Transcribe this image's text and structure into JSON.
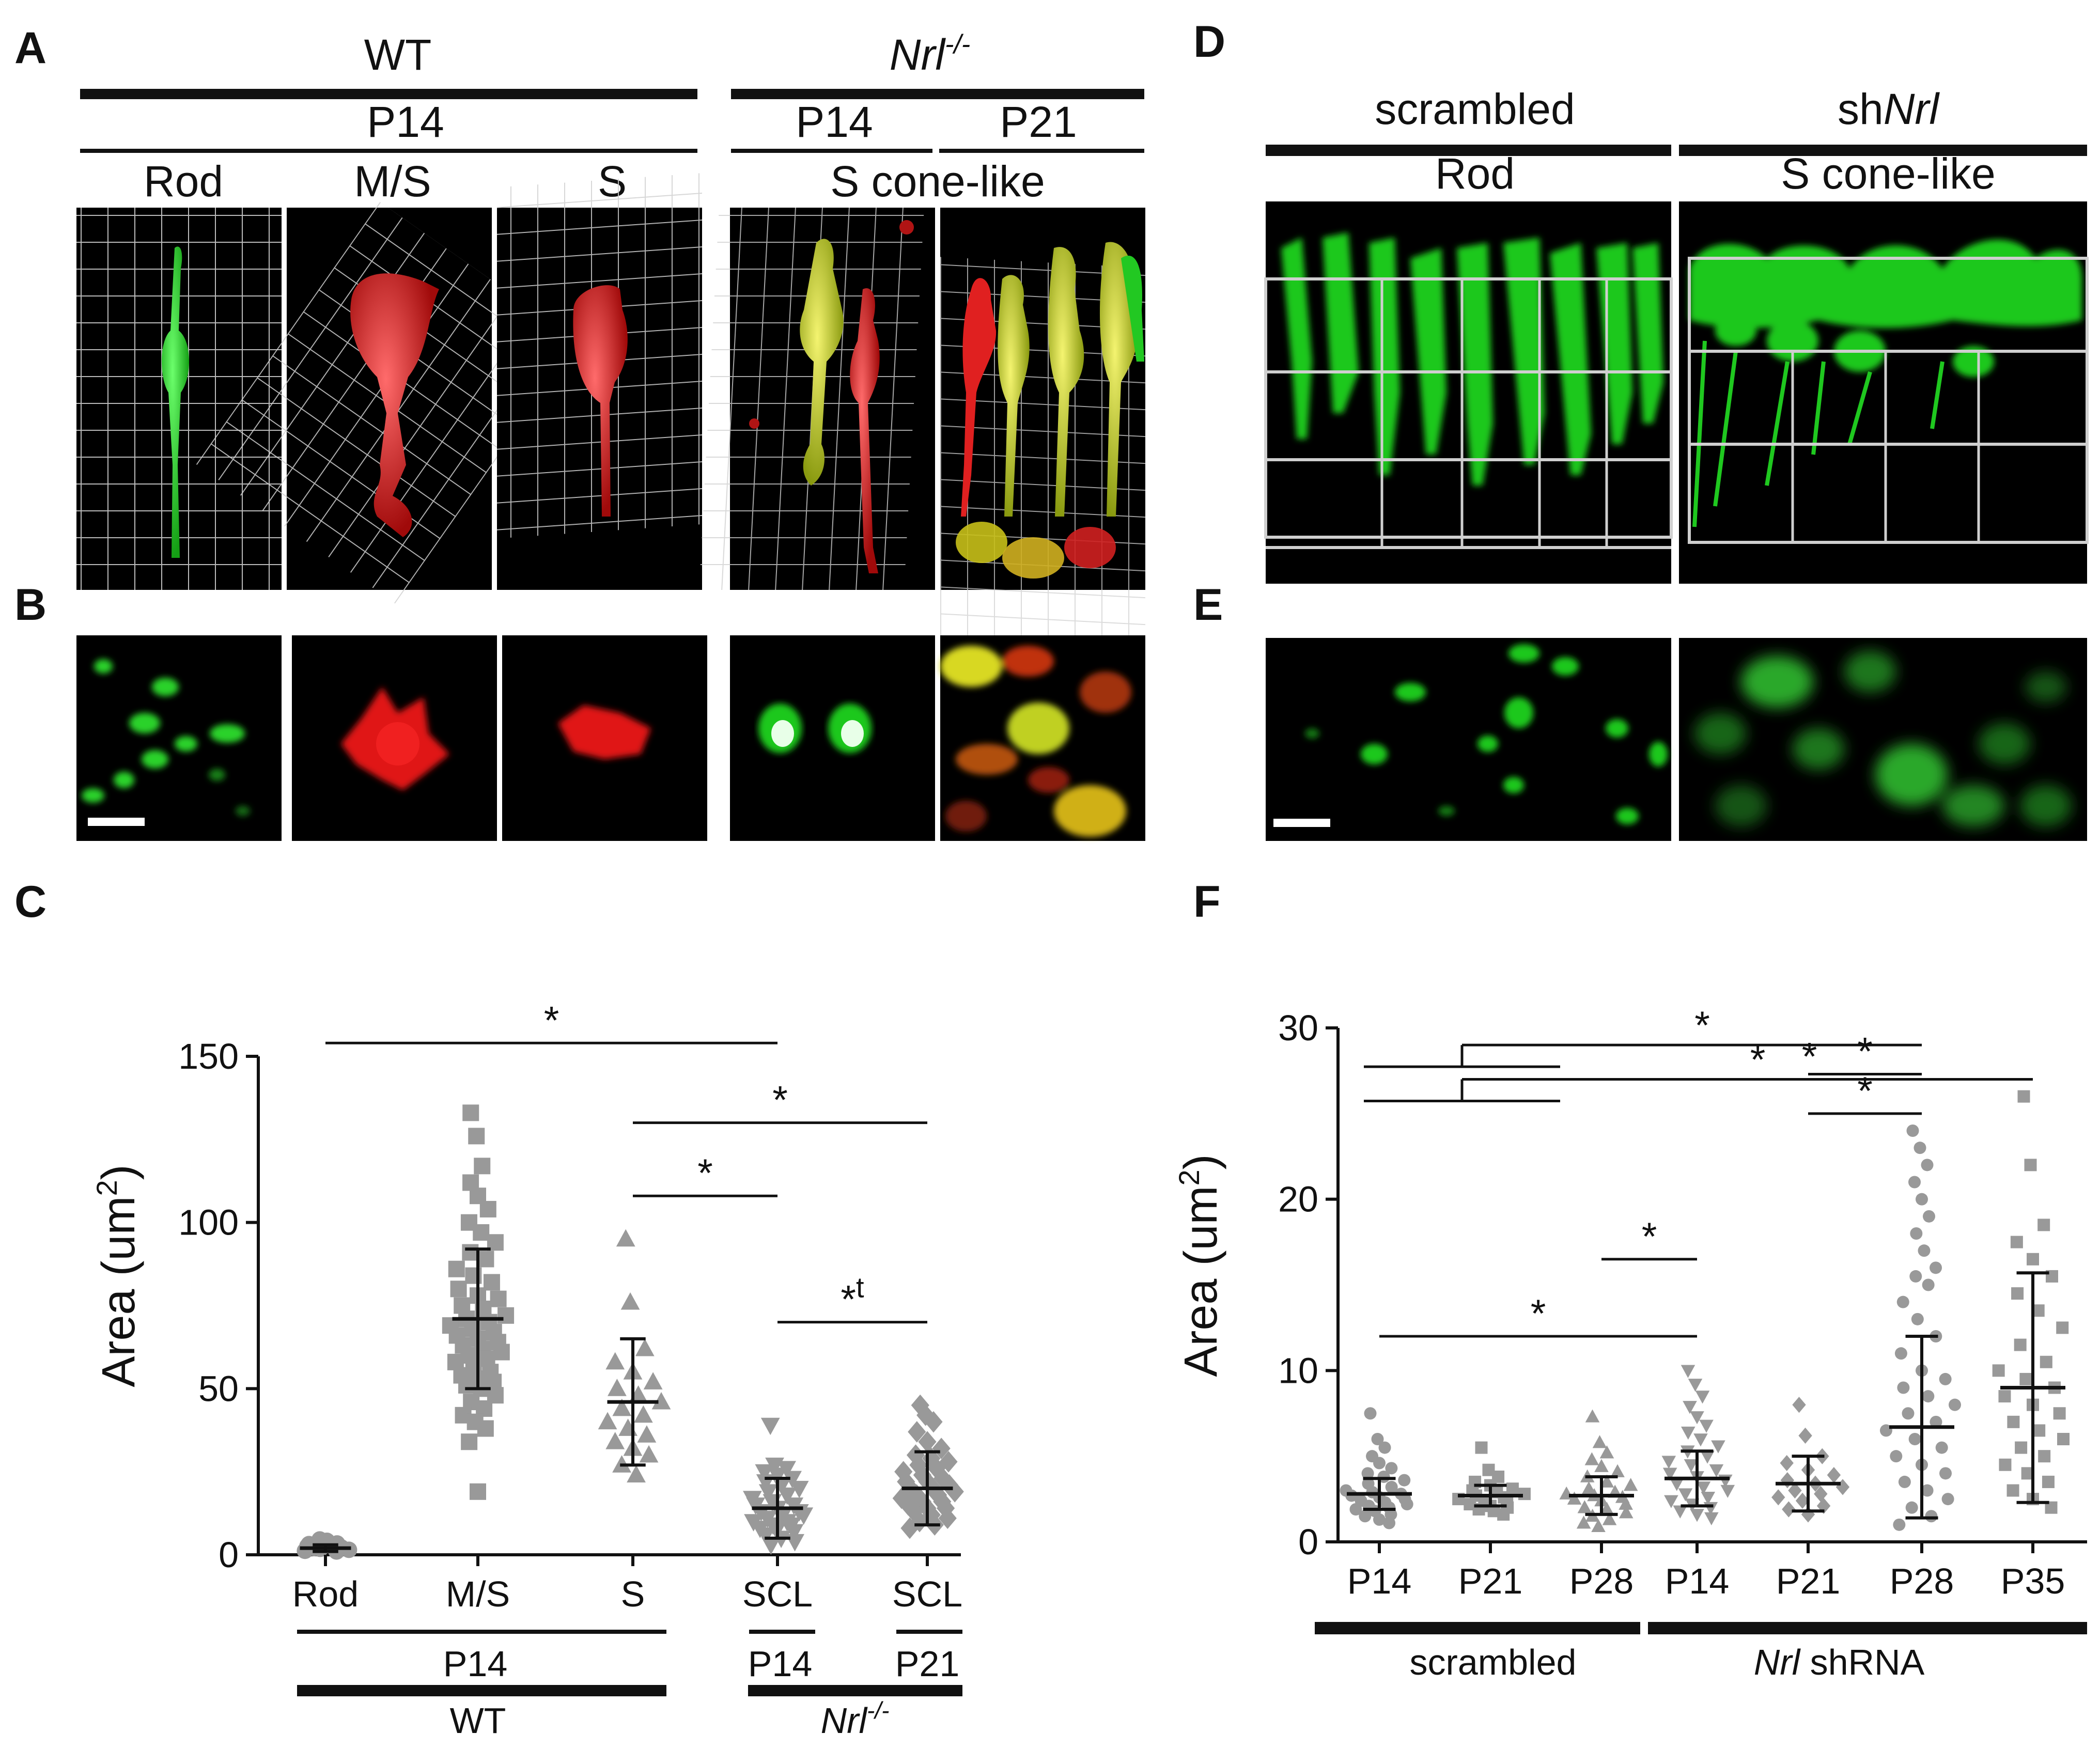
{
  "panel_labels": [
    "A",
    "B",
    "C",
    "D",
    "E",
    "F"
  ],
  "panel_a": {
    "wt": "WT",
    "p14": "P14",
    "rod": "Rod",
    "ms": "M/S",
    "s": "S",
    "nrl": "Nrl",
    "nrl_sup": "-/-",
    "nrl_p14": "P14",
    "nrl_p21": "P21",
    "scl": "S cone-like"
  },
  "panel_d": {
    "scrambled": "scrambled",
    "sh_prefix": "sh",
    "sh_gene": "Nrl",
    "rod": "Rod",
    "scl": "S cone-like"
  },
  "colors": {
    "green": "#1fd21f",
    "red": "#e01414",
    "yellow": "#d8d820",
    "gray": "#999999",
    "black": "#000000"
  },
  "chart_data": [
    {
      "panel": "C",
      "type": "scatter",
      "ylabel": "Area (um",
      "ylabel_sup": "2",
      "ylabel_tail": ")",
      "ylim": [
        0,
        150
      ],
      "yticks": [
        0,
        50,
        100,
        150
      ],
      "categories": [
        "Rod",
        "M/S",
        "S",
        "SCL",
        "SCL"
      ],
      "group_labels": {
        "p14": "P14",
        "wt": "WT",
        "scl_p14": "P14",
        "scl_p21": "P21",
        "nrl": "Nrl",
        "nrl_sup": "-/-"
      },
      "series": [
        {
          "name": "Rod",
          "marker": "circle",
          "mean": 2,
          "sd": 1,
          "points": [
            1.2,
            1.8,
            2.2,
            2.6,
            3.0,
            3.4,
            3.8,
            4.2,
            1.5,
            2.0,
            2.5,
            3.2,
            2.8,
            1.0,
            4.6
          ]
        },
        {
          "name": "M/S",
          "marker": "square",
          "mean": 71,
          "sd": 21,
          "points": [
            133,
            126,
            117,
            112,
            108,
            104,
            100,
            97,
            94,
            91,
            89,
            86,
            84,
            82,
            80,
            78,
            77,
            75,
            74,
            72,
            71,
            70,
            69,
            68,
            67,
            66,
            65,
            64,
            63,
            62,
            61,
            60,
            59,
            58,
            56,
            55,
            54,
            53,
            52,
            51,
            50,
            48,
            46,
            44,
            42,
            40,
            38,
            34,
            19
          ]
        },
        {
          "name": "S",
          "marker": "triangle-up",
          "mean": 46,
          "sd": 19,
          "points": [
            95,
            76,
            62,
            58,
            55,
            52,
            50,
            48,
            46,
            44,
            42,
            40,
            38,
            36,
            34,
            32,
            30,
            27,
            24
          ]
        },
        {
          "name": "SCL P14",
          "marker": "triangle-down",
          "mean": 14,
          "sd": 9,
          "points": [
            39,
            27,
            26,
            25,
            24,
            23,
            22,
            21,
            20,
            19,
            18,
            17,
            16,
            15,
            15,
            14,
            13,
            13,
            12,
            12,
            11,
            10,
            10,
            9,
            9,
            8,
            8,
            7,
            6,
            5,
            4,
            3
          ]
        },
        {
          "name": "SCL P21",
          "marker": "diamond",
          "mean": 20,
          "sd": 11,
          "points": [
            45,
            42,
            40,
            37,
            34,
            32,
            30,
            29,
            28,
            27,
            26,
            25,
            24,
            23,
            22,
            22,
            21,
            20,
            20,
            19,
            18,
            18,
            17,
            16,
            16,
            15,
            14,
            14,
            13,
            12,
            11,
            10,
            9,
            8
          ]
        }
      ],
      "annotations": [
        {
          "label": "*",
          "from": 0,
          "to": 3,
          "y": 154
        },
        {
          "label": "*",
          "from": 2,
          "to": 4,
          "y": 130
        },
        {
          "label": "*",
          "from": 2,
          "to": 3,
          "y": 108
        },
        {
          "label": "*",
          "sup": "t",
          "from": 3,
          "to": 4,
          "y": 70
        }
      ]
    },
    {
      "panel": "F",
      "type": "scatter",
      "ylabel": "Area (um",
      "ylabel_sup": "2",
      "ylabel_tail": ")",
      "ylim": [
        0,
        30
      ],
      "yticks": [
        0,
        10,
        20,
        30
      ],
      "categories": [
        "P14",
        "P21",
        "P28",
        "P14",
        "P21",
        "P28",
        "P35"
      ],
      "group_labels": {
        "scrambled": "scrambled",
        "nrl": "Nrl",
        "shrna": " shRNA"
      },
      "series": [
        {
          "name": "scrambled P14",
          "marker": "circle",
          "mean": 2.8,
          "sd": 0.9,
          "points": [
            7.5,
            6.0,
            5.5,
            5.0,
            4.6,
            4.3,
            4.0,
            3.8,
            3.6,
            3.4,
            3.2,
            3.0,
            2.9,
            2.8,
            2.7,
            2.6,
            2.5,
            2.4,
            2.3,
            2.2,
            2.1,
            2.0,
            1.9,
            1.8,
            1.6,
            1.5,
            1.3,
            1.1
          ]
        },
        {
          "name": "scrambled P21",
          "marker": "square",
          "mean": 2.7,
          "sd": 0.6,
          "points": [
            5.5,
            4.2,
            3.8,
            3.5,
            3.3,
            3.1,
            3.0,
            2.9,
            2.8,
            2.7,
            2.6,
            2.5,
            2.4,
            2.3,
            2.2,
            2.1,
            2.0,
            1.9,
            1.8,
            1.6
          ]
        },
        {
          "name": "scrambled P28",
          "marker": "triangle-up",
          "mean": 2.7,
          "sd": 1.1,
          "points": [
            7.3,
            5.8,
            5.2,
            4.8,
            4.4,
            4.1,
            3.8,
            3.5,
            3.3,
            3.1,
            2.9,
            2.8,
            2.7,
            2.6,
            2.5,
            2.4,
            2.2,
            2.0,
            1.9,
            1.7,
            1.5,
            1.3,
            1.1,
            0.9
          ]
        },
        {
          "name": "Nrl shRNA P14",
          "marker": "triangle-down",
          "mean": 3.7,
          "sd": 1.6,
          "points": [
            10.0,
            9.2,
            8.5,
            7.9,
            7.3,
            6.8,
            6.4,
            6.0,
            5.6,
            5.3,
            5.0,
            4.7,
            4.5,
            4.2,
            4.0,
            3.8,
            3.6,
            3.4,
            3.2,
            3.0,
            2.8,
            2.6,
            2.4,
            2.2,
            2.0,
            1.8,
            1.6,
            1.4
          ]
        },
        {
          "name": "Nrl shRNA P21",
          "marker": "diamond",
          "mean": 3.4,
          "sd": 1.6,
          "points": [
            8.0,
            6.2,
            5.0,
            4.6,
            4.2,
            3.9,
            3.6,
            3.4,
            3.2,
            3.0,
            2.8,
            2.6,
            2.4,
            2.1,
            1.9,
            1.6
          ]
        },
        {
          "name": "Nrl shRNA P28",
          "marker": "circle",
          "mean": 6.7,
          "sd": 5.3,
          "points": [
            24.0,
            23.0,
            22.0,
            21.0,
            20.0,
            19.0,
            18.0,
            17.0,
            16.0,
            15.5,
            15.0,
            14.0,
            13.0,
            12.0,
            11.0,
            10.0,
            9.5,
            9.0,
            8.5,
            8.0,
            7.5,
            7.0,
            6.5,
            6.0,
            5.5,
            5.0,
            4.5,
            4.0,
            3.5,
            3.0,
            2.5,
            2.0,
            1.5,
            1.0
          ]
        },
        {
          "name": "Nrl shRNA P35",
          "marker": "square",
          "mean": 9.0,
          "sd": 6.7,
          "points": [
            26.0,
            22.0,
            18.5,
            17.5,
            16.5,
            15.5,
            14.5,
            13.5,
            12.5,
            11.5,
            10.5,
            10.0,
            9.5,
            9.0,
            8.5,
            8.0,
            7.5,
            7.0,
            6.5,
            6.0,
            5.5,
            5.0,
            4.5,
            4.0,
            3.5,
            3.0,
            2.5,
            2.0
          ]
        }
      ],
      "annotations": [
        {
          "label": "*",
          "from": 4,
          "to": 5,
          "y": 27.3
        },
        {
          "label": "*",
          "from": 3,
          "to": 5,
          "y": 27.0
        },
        {
          "label": "*",
          "bracket": [
            0,
            2
          ],
          "to": 5,
          "y": 29.0
        },
        {
          "label": "*",
          "bracket": [
            0,
            2
          ],
          "to": 6,
          "y": 27.0
        },
        {
          "label": "*",
          "from": 4,
          "to": 5,
          "y": 25.0
        },
        {
          "label": "*",
          "from": 2,
          "to": 3,
          "y": 16.5
        },
        {
          "label": "*",
          "from": 0,
          "to": 3,
          "y": 12.0
        }
      ]
    }
  ]
}
